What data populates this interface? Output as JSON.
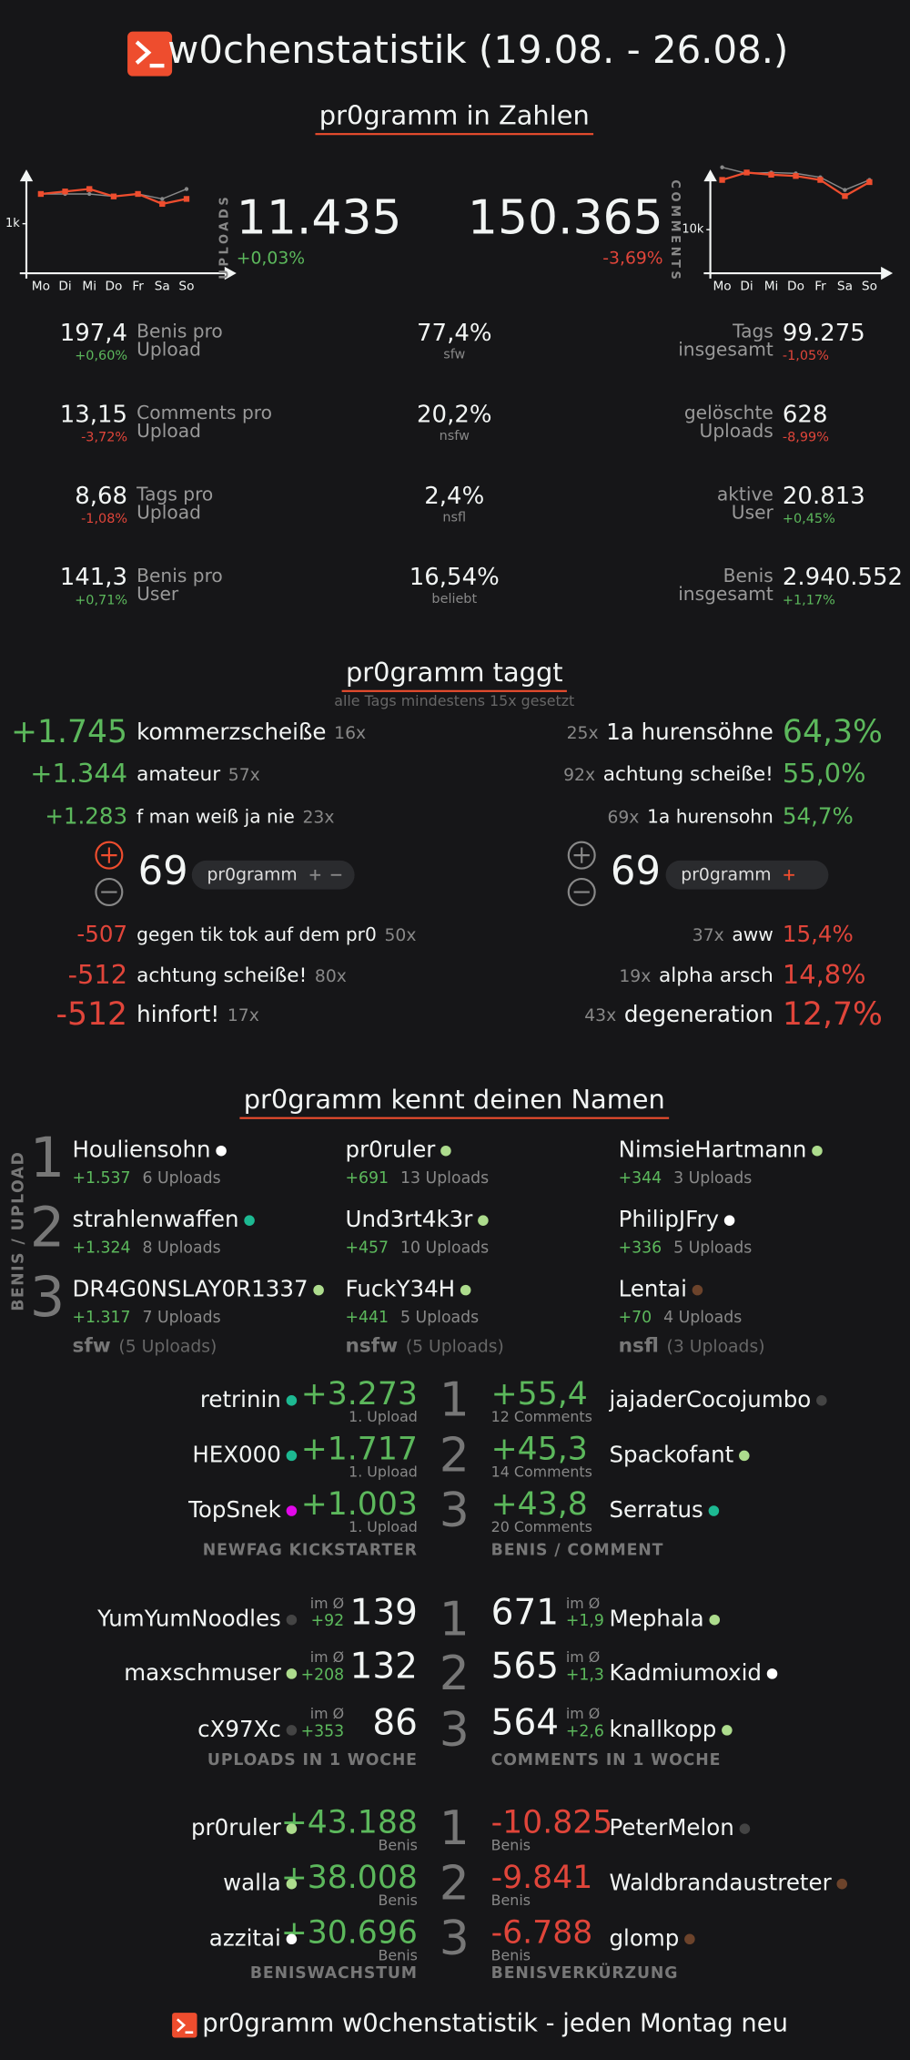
{
  "ranks": [
    "1",
    "2",
    "3"
  ],
  "header": {
    "title": "w0chenstatistik (19.08. - 26.08.)"
  },
  "zahlen": {
    "title": "pr0gramm in Zahlen",
    "uploads": {
      "label": "UPLOADS",
      "value": "11.435",
      "change": "+0,03%",
      "chart": {
        "type": "line",
        "categories": [
          "Mo",
          "Di",
          "Mi",
          "Do",
          "Fr",
          "Sa",
          "So"
        ],
        "ylim": [
          0,
          2200
        ],
        "yticks": [
          {
            "value": 1000,
            "label": "1k"
          }
        ],
        "series": [
          {
            "color": "#888888",
            "values": [
              1600,
              1600,
              1600,
              1550,
              1600,
              1500,
              1700
            ]
          },
          {
            "color": "#ee4d2e",
            "values": [
              1600,
              1650,
              1700,
              1550,
              1600,
              1400,
              1500
            ]
          }
        ]
      }
    },
    "comments": {
      "label": "COMMENTS",
      "value": "150.365",
      "change": "-3,69%",
      "chart": {
        "type": "line",
        "categories": [
          "Mo",
          "Di",
          "Mi",
          "Do",
          "Fr",
          "Sa",
          "So"
        ],
        "ylim": [
          0,
          25000
        ],
        "yticks": [
          {
            "value": 10000,
            "label": "10k"
          }
        ],
        "series": [
          {
            "color": "#888888",
            "values": [
              24300,
              22900,
              23100,
              22900,
              22000,
              19100,
              21400
            ]
          },
          {
            "color": "#ee4d2e",
            "values": [
              21400,
              23100,
              22600,
              22300,
              21400,
              17700,
              20900
            ]
          }
        ]
      }
    },
    "stats": {
      "left": [
        {
          "value": "197,4",
          "change": "+0,60%",
          "label": [
            "Benis pro",
            "Upload"
          ]
        },
        {
          "value": "13,15",
          "change": "-3,72%",
          "label": [
            "Comments pro",
            "Upload"
          ]
        },
        {
          "value": "8,68",
          "change": "-1,08%",
          "label": [
            "Tags pro",
            "Upload"
          ]
        },
        {
          "value": "141,3",
          "change": "+0,71%",
          "label": [
            "Benis pro",
            "User"
          ]
        }
      ],
      "middle": [
        {
          "value": "77,4%",
          "label": "sfw"
        },
        {
          "value": "20,2%",
          "label": "nsfw"
        },
        {
          "value": "2,4%",
          "label": "nsfl"
        },
        {
          "value": "16,54%",
          "label": "beliebt"
        }
      ],
      "right": [
        {
          "label": [
            "Tags",
            "insgesamt"
          ],
          "value": "99.275",
          "change": "-1,05%"
        },
        {
          "label": [
            "gelöschte",
            "Uploads"
          ],
          "value": "628",
          "change": "-8,99%"
        },
        {
          "label": [
            "aktive",
            "User"
          ],
          "value": "20.813",
          "change": "+0,45%"
        },
        {
          "label": [
            "Benis",
            "insgesamt"
          ],
          "value": "2.940.552",
          "change": "+1,17%"
        }
      ]
    }
  },
  "taggt": {
    "title": "pr0gramm taggt",
    "subtitle": "alle Tags mindestens 15x gesetzt",
    "left": {
      "top": [
        {
          "value": "+1.745",
          "tag": "kommerzscheiße",
          "count": "16x"
        },
        {
          "value": "+1.344",
          "tag": "amateur",
          "count": "57x"
        },
        {
          "value": "+1.283",
          "tag": "f man weiß ja nie",
          "count": "23x"
        }
      ],
      "vote": {
        "score": "69",
        "tag": "pr0gramm"
      },
      "bottom": [
        {
          "value": "-507",
          "tag": "gegen tik tok auf dem pr0",
          "count": "50x"
        },
        {
          "value": "-512",
          "tag": "achtung scheiße!",
          "count": "80x"
        },
        {
          "value": "-512",
          "tag": "hinfort!",
          "count": "17x"
        }
      ]
    },
    "right": {
      "top": [
        {
          "count": "25x",
          "tag": "1a hurensöhne",
          "value": "64,3%"
        },
        {
          "count": "92x",
          "tag": "achtung scheiße!",
          "value": "55,0%"
        },
        {
          "count": "69x",
          "tag": "1a hurensohn",
          "value": "54,7%"
        }
      ],
      "vote": {
        "score": "69",
        "tag": "pr0gramm"
      },
      "bottom": [
        {
          "count": "37x",
          "tag": "aww",
          "value": "15,4%"
        },
        {
          "count": "19x",
          "tag": "alpha arsch",
          "value": "14,8%"
        },
        {
          "count": "43x",
          "tag": "degeneration",
          "value": "12,7%"
        }
      ]
    }
  },
  "namen": {
    "title": "pr0gramm kennt deinen Namen",
    "axis": "BENIS / UPLOAD",
    "columns": [
      {
        "label": "sfw",
        "uploads": "(5 Uploads)",
        "users": [
          {
            "name": "Houliensohn",
            "dot": "#ffffff",
            "benis": "+1.537",
            "uploads": "6 Uploads"
          },
          {
            "name": "strahlenwaffen",
            "dot": "#1db992",
            "benis": "+1.324",
            "uploads": "8 Uploads"
          },
          {
            "name": "DR4G0NSLAY0R1337",
            "dot": "#addc8d",
            "benis": "+1.317",
            "uploads": "7 Uploads"
          }
        ]
      },
      {
        "label": "nsfw",
        "uploads": "(5 Uploads)",
        "users": [
          {
            "name": "pr0ruler",
            "dot": "#addc8d",
            "benis": "+691",
            "uploads": "13 Uploads"
          },
          {
            "name": "Und3rt4k3r",
            "dot": "#addc8d",
            "benis": "+457",
            "uploads": "10 Uploads"
          },
          {
            "name": "FuckY34H",
            "dot": "#addc8d",
            "benis": "+441",
            "uploads": "5 Uploads"
          }
        ]
      },
      {
        "label": "nsfl",
        "uploads": "(3 Uploads)",
        "users": [
          {
            "name": "NimsieHartmann",
            "dot": "#addc8d",
            "benis": "+344",
            "uploads": "3 Uploads"
          },
          {
            "name": "PhilipJFry",
            "dot": "#ffffff",
            "benis": "+336",
            "uploads": "5 Uploads"
          },
          {
            "name": "Lentai",
            "dot": "#6c432b",
            "benis": "+70",
            "uploads": "4 Uploads"
          }
        ]
      }
    ]
  },
  "boards": [
    {
      "left": {
        "label": "NEWFAG KICKSTARTER",
        "rows": [
          {
            "name": "retrinin",
            "dot": "#1db992",
            "value": "+3.273",
            "sub": "1. Upload"
          },
          {
            "name": "HEX000",
            "dot": "#1db992",
            "value": "+1.717",
            "sub": "1. Upload"
          },
          {
            "name": "TopSnek",
            "dot": "#e108e9",
            "value": "+1.003",
            "sub": "1. Upload"
          }
        ]
      },
      "right": {
        "label": "BENIS / COMMENT",
        "rows": [
          {
            "name": "jajaderCocojumbo",
            "dot": "#444444",
            "value": "+55,4",
            "sub": "12 Comments"
          },
          {
            "name": "Spackofant",
            "dot": "#addc8d",
            "value": "+45,3",
            "sub": "14 Comments"
          },
          {
            "name": "Serratus",
            "dot": "#1db992",
            "value": "+43,8",
            "sub": "20 Comments"
          }
        ]
      }
    },
    {
      "left": {
        "label": "UPLOADS IN 1 WOCHE",
        "rows": [
          {
            "name": "YumYumNoodles",
            "dot": "#444444",
            "avg_label": "im Ø",
            "avg": "+92",
            "value": "139"
          },
          {
            "name": "maxschmuser",
            "dot": "#addc8d",
            "avg_label": "im Ø",
            "avg": "+208",
            "value": "132"
          },
          {
            "name": "cX97Xc",
            "dot": "#444444",
            "avg_label": "im Ø",
            "avg": "+353",
            "value": "86"
          }
        ]
      },
      "right": {
        "label": "COMMENTS IN 1 WOCHE",
        "rows": [
          {
            "name": "Mephala",
            "dot": "#addc8d",
            "avg_label": "im Ø",
            "avg": "+1,9",
            "value": "671"
          },
          {
            "name": "Kadmiumoxid",
            "dot": "#ffffff",
            "avg_label": "im Ø",
            "avg": "+1,3",
            "value": "565"
          },
          {
            "name": "knallkopp",
            "dot": "#addc8d",
            "avg_label": "im Ø",
            "avg": "+2,6",
            "value": "564"
          }
        ]
      }
    },
    {
      "left": {
        "label": "BENISWACHSTUM",
        "rows": [
          {
            "name": "pr0ruler",
            "dot": "#addc8d",
            "value": "+43.188",
            "sub": "Benis"
          },
          {
            "name": "walla",
            "dot": "#addc8d",
            "value": "+38.008",
            "sub": "Benis"
          },
          {
            "name": "azzitai",
            "dot": "#ffffff",
            "value": "+30.696",
            "sub": "Benis"
          }
        ]
      },
      "right": {
        "label": "BENISVERKÜRZUNG",
        "rows": [
          {
            "name": "PeterMelon",
            "dot": "#444444",
            "value": "-10.825",
            "sub": "Benis"
          },
          {
            "name": "Waldbrandaustreter",
            "dot": "#6c432b",
            "value": "-9.841",
            "sub": "Benis"
          },
          {
            "name": "glomp",
            "dot": "#6c432b",
            "value": "-6.788",
            "sub": "Benis"
          }
        ]
      }
    }
  ],
  "footer": {
    "text": "pr0gramm w0chenstatistik - jeden Montag neu"
  }
}
